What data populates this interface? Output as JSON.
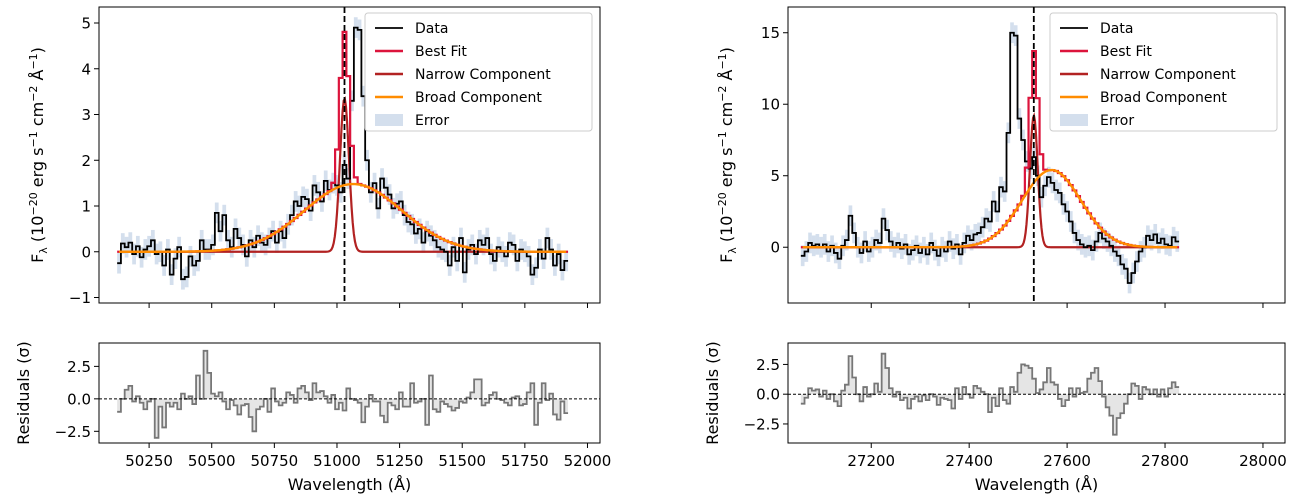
{
  "chart_data": [
    {
      "type": "line",
      "panel": "left-top",
      "xlim": [
        50050,
        52050
      ],
      "ylim": [
        -1.12,
        5.35
      ],
      "ylabel_main": "F",
      "ylabel_sub": "λ",
      "ylabel_rest": "(10",
      "ylabel_exp1": "−20",
      "ylabel_mid": " erg s",
      "ylabel_exp2": "−1",
      "ylabel_mid2": " cm",
      "ylabel_exp3": "−2",
      "ylabel_mid3": " Å",
      "ylabel_exp4": "−1",
      "ylabel_end": ")",
      "yticks": [
        -1,
        0,
        1,
        2,
        3,
        4,
        5
      ],
      "ytick_labels": [
        "−1",
        "0",
        "1",
        "2",
        "3",
        "4",
        "5"
      ],
      "xticks": [
        50250,
        50500,
        50750,
        51000,
        51250,
        51500,
        51750,
        52000
      ],
      "vline": 51030,
      "legend": [
        "Data",
        "Best Fit",
        "Narrow Component",
        "Broad Component",
        "Error"
      ],
      "legend_position": "top-right",
      "colors": {
        "data": "#000000",
        "fit": "#dc143c",
        "narrow": "#b22222",
        "broad": "#ff8c00",
        "error": "#b0c4de"
      },
      "narrow": {
        "amp": 3.35,
        "center": 51030,
        "sigma": 18
      },
      "broad": {
        "amp": 1.48,
        "center": 51065,
        "sigma": 195
      },
      "data_x_start": 50130,
      "data_x_step": 15,
      "data": [
        -0.25,
        0.18,
        0.1,
        0.2,
        -0.05,
        0.12,
        -0.12,
        0.05,
        0.12,
        0.25,
        -0.05,
        0.0,
        -0.3,
        0.05,
        -0.5,
        -0.15,
        0.1,
        -0.6,
        -0.55,
        -0.1,
        -0.3,
        -0.2,
        0.25,
        0.05,
        0.05,
        0.15,
        0.85,
        0.45,
        0.8,
        0.25,
        0.1,
        0.5,
        0.3,
        0.15,
        -0.1,
        0.25,
        0.1,
        0.35,
        0.2,
        0.15,
        0.3,
        0.45,
        0.2,
        0.45,
        0.3,
        0.6,
        0.8,
        1.1,
        1.0,
        1.2,
        1.15,
        0.9,
        1.45,
        1.3,
        1.1,
        1.55,
        1.35,
        1.5,
        1.45,
        1.3,
        1.9,
        1.6,
        3.3,
        4.9,
        4.85,
        3.4,
        2.0,
        1.3,
        1.5,
        0.95,
        1.6,
        1.4,
        1.25,
        0.95,
        1.05,
        1.1,
        0.8,
        0.65,
        0.6,
        0.4,
        0.5,
        0.2,
        0.45,
        0.35,
        0.25,
        0.1,
        0.05,
        0.0,
        -0.3,
        0.1,
        -0.2,
        0.3,
        -0.45,
        0.05,
        0.15,
        -0.05,
        0.25,
        0.15,
        0.3,
        -0.05,
        -0.2,
        0.1,
        0.0,
        -0.1,
        0.2,
        0.15,
        -0.2,
        0.05,
        0.0,
        -0.1,
        -0.5,
        -0.35,
        0.05,
        -0.15,
        0.3,
        0.05,
        -0.3,
        -0.05,
        -0.4,
        -0.2
      ],
      "res_ylim": [
        -3.4,
        4.3
      ],
      "res_yticks": [
        -2.5,
        0.0,
        2.5
      ],
      "res_ytick_labels": [
        "−2.5",
        "0.0",
        "2.5"
      ],
      "res_xticks": [
        50250,
        50500,
        50750,
        51000,
        51250,
        51500,
        51750,
        52000
      ],
      "res_xtick_labels": [
        "50250",
        "50500",
        "50750",
        "51000",
        "51250",
        "51500",
        "51750",
        "52000"
      ],
      "res_ylabel": "Residuals (σ)",
      "res_xlabel": "Wavelength (Å)",
      "res_x_start": 50130,
      "res_x_step": 15,
      "residuals": [
        -1.0,
        0.0,
        0.7,
        1.0,
        -0.2,
        0.2,
        -0.3,
        -0.8,
        -0.2,
        0.0,
        -3.0,
        -0.6,
        -2.2,
        -0.3,
        -0.6,
        -0.3,
        -0.8,
        0.4,
        0.0,
        0.2,
        -0.4,
        1.8,
        0.0,
        3.7,
        2.0,
        0.4,
        0.2,
        0.5,
        -0.2,
        -0.8,
        -0.1,
        -0.5,
        -1.2,
        -0.5,
        -0.4,
        -1.4,
        -2.5,
        -0.8,
        -0.6,
        0.0,
        -1.0,
        0.8,
        -0.2,
        -0.5,
        -0.3,
        0.5,
        0.3,
        -0.3,
        0.8,
        1.0,
        0.5,
        -0.1,
        1.2,
        0.5,
        0.6,
        0.2,
        -0.3,
        0.3,
        -0.8,
        -0.3,
        -0.9,
        0.8,
        0.0,
        -0.1,
        -0.3,
        -1.8,
        -0.6,
        0.3,
        -0.2,
        -0.2,
        -1.3,
        -1.8,
        -0.3,
        -0.5,
        -0.8,
        0.5,
        -0.6,
        -0.6,
        1.2,
        -0.3,
        -0.2,
        0.0,
        -2.0,
        1.8,
        -0.8,
        -1.0,
        -0.2,
        -0.4,
        -0.6,
        -0.9,
        -0.7,
        -0.2,
        -0.3,
        0.1,
        0.5,
        1.5,
        1.5,
        -0.5,
        -0.3,
        0.3,
        0.5,
        0.0,
        -0.1,
        -0.3,
        -0.5,
        0.1,
        0.2,
        -0.5,
        -0.4,
        0.5,
        1.2,
        -2.0,
        -0.3,
        1.2,
        -0.1,
        0.4,
        -1.2,
        -1.6,
        -0.2,
        -1.1
      ]
    },
    {
      "type": "line",
      "panel": "right-top",
      "xlim": [
        27030,
        28045
      ],
      "ylim": [
        -3.9,
        16.8
      ],
      "ylabel_main": "F",
      "ylabel_sub": "λ",
      "ylabel_rest": "(10",
      "ylabel_exp1": "−20",
      "ylabel_mid": " erg s",
      "ylabel_exp2": "−1",
      "ylabel_mid2": " cm",
      "ylabel_exp3": "−2",
      "ylabel_mid3": " Å",
      "ylabel_exp4": "−1",
      "ylabel_end": ")",
      "yticks": [
        0,
        5,
        10,
        15
      ],
      "ytick_labels": [
        "0",
        "5",
        "10",
        "15"
      ],
      "xticks": [
        27200,
        27400,
        27600,
        27800,
        28000
      ],
      "vline": 27532,
      "legend": [
        "Data",
        "Best Fit",
        "Narrow Component",
        "Broad Component",
        "Error"
      ],
      "legend_position": "top-right",
      "colors": {
        "data": "#000000",
        "fit": "#dc143c",
        "narrow": "#b22222",
        "broad": "#ff8c00",
        "error": "#b0c4de"
      },
      "narrow": {
        "amp": 9.2,
        "center": 27532,
        "sigma": 8
      },
      "broad": {
        "amp": 5.4,
        "center": 27568,
        "sigma": 60
      },
      "data_x_start": 27060,
      "data_x_step": 7.5,
      "data": [
        -0.6,
        -0.3,
        0.3,
        0.1,
        0.2,
        0.0,
        0.2,
        -0.3,
        0.1,
        -0.4,
        -0.8,
        0.1,
        0.5,
        2.2,
        1.0,
        0.0,
        -0.4,
        0.4,
        -0.3,
        0.0,
        0.5,
        0.3,
        2.0,
        1.2,
        0.4,
        0.0,
        0.3,
        -0.1,
        0.2,
        -0.5,
        -0.2,
        0.1,
        -0.4,
        0.0,
        -0.5,
        0.3,
        -0.2,
        -0.6,
        0.0,
        -0.3,
        0.4,
        -0.1,
        0.2,
        -0.5,
        0.3,
        0.8,
        0.5,
        0.9,
        1.0,
        1.4,
        2.0,
        1.8,
        3.2,
        2.5,
        4.2,
        3.9,
        8.0,
        15.0,
        14.8,
        9.0,
        7.5,
        6.0,
        5.5,
        6.3,
        5.0,
        3.5,
        4.3,
        4.9,
        4.5,
        4.0,
        3.8,
        3.0,
        2.5,
        1.8,
        1.0,
        0.5,
        0.2,
        0.0,
        0.1,
        -0.2,
        0.4,
        1.0,
        0.6,
        0.4,
        0.1,
        -0.3,
        -0.6,
        -1.2,
        -1.5,
        -2.5,
        -1.8,
        -1.0,
        -0.3,
        0.0,
        0.8,
        0.5,
        0.9,
        0.3,
        0.6,
        0.2,
        0.1,
        0.7,
        0.4
      ]
    },
    {
      "type": "line",
      "panel": "right-bottom",
      "res_ylim": [
        -4.1,
        4.3
      ],
      "res_yticks": [
        -2.5,
        0.0,
        2.5
      ],
      "res_ytick_labels": [
        "−2.5",
        "0.0",
        "2.5"
      ],
      "res_xticks": [
        27200,
        27400,
        27600,
        27800,
        28000
      ],
      "res_xtick_labels": [
        "27200",
        "27400",
        "27600",
        "27800",
        "28000"
      ],
      "res_ylabel": "Residuals (σ)",
      "res_xlabel": "Wavelength (Å)",
      "res_x_start": 27060,
      "res_x_step": 7.5,
      "residuals": [
        -0.8,
        -0.3,
        0.5,
        0.3,
        0.4,
        -0.2,
        0.3,
        -0.4,
        0.0,
        -0.6,
        -1.0,
        0.3,
        0.8,
        3.2,
        1.4,
        0.0,
        -0.6,
        0.6,
        -0.2,
        0.0,
        0.9,
        0.2,
        3.4,
        2.2,
        0.5,
        -0.2,
        0.2,
        -0.5,
        -0.3,
        -1.2,
        -0.4,
        -0.2,
        -0.6,
        -0.1,
        -0.5,
        0.0,
        -0.2,
        -0.9,
        -0.3,
        -0.4,
        -0.5,
        -1.2,
        0.5,
        -0.4,
        0.6,
        0.0,
        -0.3,
        0.7,
        0.5,
        0.2,
        0.0,
        -1.5,
        -0.3,
        -1.0,
        0.5,
        -0.5,
        -0.8,
        0.6,
        0.2,
        1.8,
        2.5,
        2.4,
        2.2,
        1.3,
        0.1,
        0.4,
        1.0,
        2.2,
        1.0,
        0.8,
        -0.4,
        -1.0,
        -0.5,
        0.5,
        -0.2,
        0.5,
        0.1,
        0.2,
        1.3,
        1.8,
        2.2,
        1.1,
        -0.2,
        -1.1,
        -1.8,
        -3.4,
        -2.0,
        -1.6,
        -0.8,
        0.0,
        0.9,
        0.7,
        -0.4,
        0.6,
        0.4,
        0.0,
        0.4,
        -0.2,
        0.4,
        -0.2,
        0.5,
        1.0,
        0.6
      ]
    }
  ]
}
